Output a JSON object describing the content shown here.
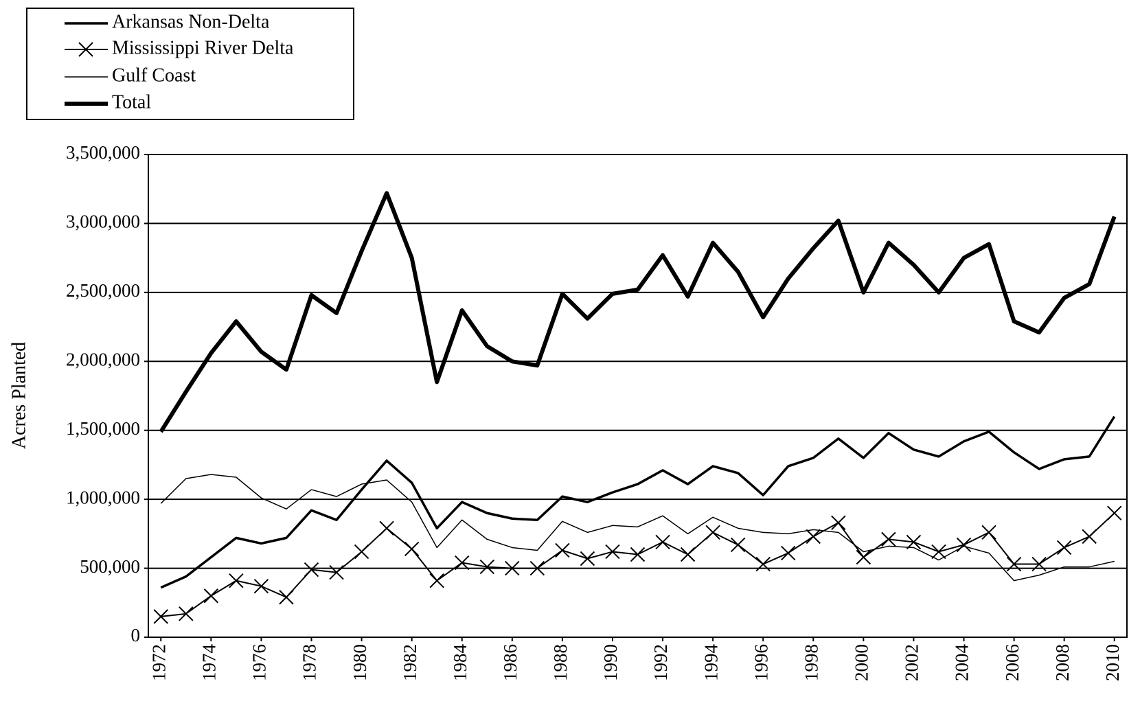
{
  "chart_data": {
    "type": "line",
    "y_label": "Acres Planted",
    "x": [
      1972,
      1973,
      1974,
      1975,
      1976,
      1977,
      1978,
      1979,
      1980,
      1981,
      1982,
      1983,
      1984,
      1985,
      1986,
      1987,
      1988,
      1989,
      1990,
      1991,
      1992,
      1993,
      1994,
      1995,
      1996,
      1997,
      1998,
      1999,
      2000,
      2001,
      2002,
      2003,
      2004,
      2005,
      2006,
      2007,
      2008,
      2009,
      2010
    ],
    "xlim": [
      1971.5,
      2010.5
    ],
    "xticks": [
      1972,
      1974,
      1976,
      1978,
      1980,
      1982,
      1984,
      1986,
      1988,
      1990,
      1992,
      1994,
      1996,
      1998,
      2000,
      2002,
      2004,
      2006,
      2008,
      2010
    ],
    "ylim": [
      0,
      3500000
    ],
    "yticks": [
      0,
      {
        "value": 500000,
        "label": "500,000"
      },
      {
        "value": 1000000,
        "label": "1,000,000"
      },
      {
        "value": 1500000,
        "label": "1,500,000"
      },
      {
        "value": 2000000,
        "label": "2,000,000"
      },
      {
        "value": 2500000,
        "label": "2,500,000"
      },
      {
        "value": 3000000,
        "label": "3,000,000"
      },
      {
        "value": 3500000,
        "label": "3,500,000"
      }
    ],
    "grid": true,
    "legend": "top-left",
    "series": [
      {
        "name": "Arkansas Non-Delta",
        "color": "#000000",
        "values": [
          360000,
          440000,
          580000,
          720000,
          680000,
          720000,
          920000,
          850000,
          1070000,
          1280000,
          1120000,
          790000,
          980000,
          900000,
          860000,
          850000,
          1020000,
          980000,
          1050000,
          1110000,
          1210000,
          1110000,
          1240000,
          1190000,
          1030000,
          1240000,
          1300000,
          1440000,
          1300000,
          1480000,
          1360000,
          1310000,
          1420000,
          1490000,
          1340000,
          1220000,
          1290000,
          1310000,
          1600000
        ]
      },
      {
        "name": "Mississippi River Delta",
        "color": "#000000",
        "marker": "x",
        "values": [
          150000,
          170000,
          300000,
          410000,
          370000,
          290000,
          490000,
          470000,
          620000,
          790000,
          640000,
          410000,
          540000,
          510000,
          500000,
          500000,
          630000,
          570000,
          620000,
          600000,
          690000,
          600000,
          760000,
          670000,
          530000,
          610000,
          730000,
          830000,
          580000,
          710000,
          690000,
          620000,
          670000,
          760000,
          530000,
          530000,
          650000,
          730000,
          900000
        ]
      },
      {
        "name": "Gulf Coast",
        "color": "#000000",
        "values": [
          970000,
          1150000,
          1180000,
          1160000,
          1010000,
          930000,
          1070000,
          1020000,
          1110000,
          1140000,
          980000,
          650000,
          850000,
          710000,
          650000,
          630000,
          840000,
          760000,
          810000,
          800000,
          880000,
          750000,
          870000,
          790000,
          760000,
          750000,
          780000,
          760000,
          620000,
          660000,
          650000,
          560000,
          660000,
          610000,
          410000,
          450000,
          510000,
          510000,
          550000
        ]
      },
      {
        "name": "Total",
        "color": "#000000",
        "values": [
          1490000,
          1780000,
          2060000,
          2290000,
          2070000,
          1940000,
          2480000,
          2350000,
          2800000,
          3220000,
          2750000,
          1850000,
          2370000,
          2110000,
          2000000,
          1970000,
          2490000,
          2310000,
          2490000,
          2520000,
          2770000,
          2470000,
          2860000,
          2650000,
          2320000,
          2600000,
          2820000,
          3020000,
          2500000,
          2860000,
          2700000,
          2500000,
          2750000,
          2850000,
          2290000,
          2210000,
          2460000,
          2560000,
          3050000
        ]
      }
    ]
  }
}
